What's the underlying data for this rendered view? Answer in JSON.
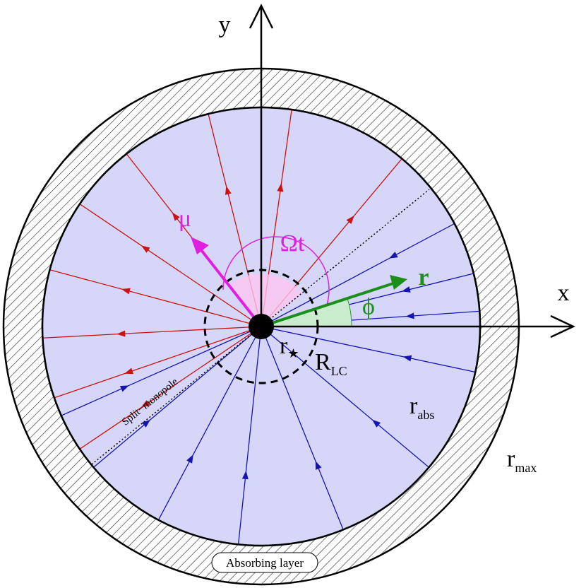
{
  "axes": {
    "x": "x",
    "y": "y"
  },
  "labels": {
    "mu": "μ",
    "omega_t": "Ωt",
    "r": "r",
    "phi": "ϕ",
    "r_star": {
      "base": "r",
      "sub": "★"
    },
    "r_lc": {
      "base": "R",
      "sub": "LC"
    },
    "r_abs": {
      "base": "r",
      "sub": "abs"
    },
    "r_max": {
      "base": "r",
      "sub": "max"
    },
    "split_monopole": "Split−monopole",
    "absorbing_layer": "Absorbing layer"
  }
}
